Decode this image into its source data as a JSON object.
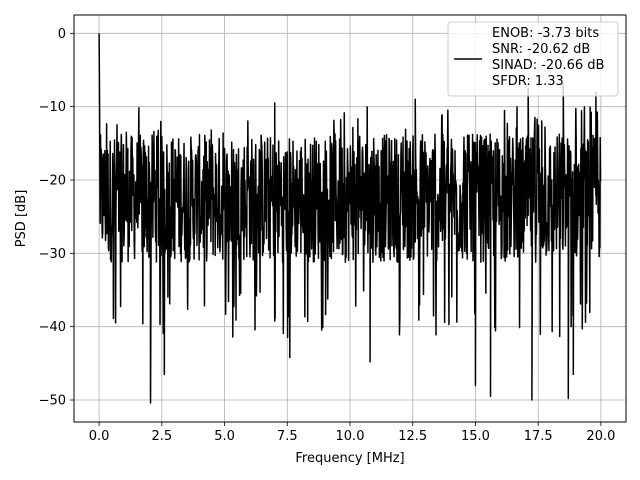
{
  "chart_data": {
    "type": "line",
    "title": "",
    "xlabel": "Frequency [MHz]",
    "ylabel": "PSD [dB]",
    "xlim": [
      -1.0,
      21.0
    ],
    "ylim": [
      -53.0,
      2.5
    ],
    "xticks": [
      0.0,
      2.5,
      5.0,
      7.5,
      10.0,
      12.5,
      15.0,
      17.5,
      20.0
    ],
    "xtick_labels": [
      "0.0",
      "2.5",
      "5.0",
      "7.5",
      "10.0",
      "12.5",
      "15.0",
      "17.5",
      "20.0"
    ],
    "yticks": [
      0,
      -10,
      -20,
      -30,
      -40,
      -50
    ],
    "ytick_labels": [
      "0",
      "−10",
      "−20",
      "−30",
      "−40",
      "−50"
    ],
    "grid": true,
    "legend_position": "top-right",
    "series": [
      {
        "name": "ENOB: -3.73 bits\nSNR: -20.62 dB\nSINAD: -20.66 dB\nSFDR: 1.33",
        "color": "#000000",
        "noise_floor_db": -20.6,
        "noise_band_db": [
          -35,
          -10
        ],
        "peak": {
          "x": 0.0,
          "y": 0.0
        },
        "notable_dips": [
          {
            "x": 2.05,
            "y": -50.4
          },
          {
            "x": 2.6,
            "y": -46.5
          },
          {
            "x": 7.6,
            "y": -44.2
          },
          {
            "x": 10.8,
            "y": -44.8
          },
          {
            "x": 15.0,
            "y": -48.0
          },
          {
            "x": 15.6,
            "y": -49.5
          },
          {
            "x": 17.25,
            "y": -50.0
          },
          {
            "x": 18.7,
            "y": -49.8
          },
          {
            "x": 18.9,
            "y": -46.5
          }
        ],
        "notable_peaks": [
          {
            "x": 7.0,
            "y": -9.5
          },
          {
            "x": 12.6,
            "y": -9.0
          },
          {
            "x": 17.1,
            "y": -7.5
          },
          {
            "x": 18.5,
            "y": -7.0
          },
          {
            "x": 19.8,
            "y": -8.0
          }
        ]
      }
    ]
  },
  "legend": {
    "lines": [
      "ENOB: -3.73 bits",
      "SNR: -20.62 dB",
      "SINAD: -20.66 dB",
      "SFDR: 1.33"
    ]
  }
}
